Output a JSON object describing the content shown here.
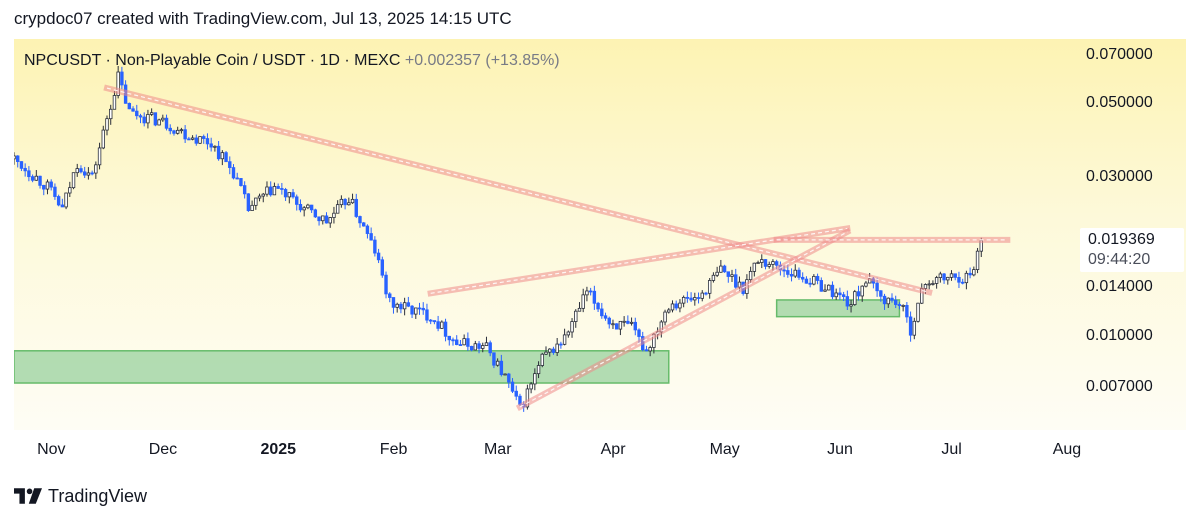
{
  "credit": "crypdoc07 created with TradingView.com, Jul 13, 2025 14:15 UTC",
  "legend": {
    "symbol": "NPCUSDT · Non-Playable Coin / USDT · 1D · MEXC",
    "change": "+0.002357 (+13.85%)"
  },
  "brand": {
    "name": "TradingView",
    "icon": "tradingview-logo-icon"
  },
  "colors": {
    "up": "#2a2e39",
    "down": "#2962ff",
    "trendline": "#ef8a8a",
    "zone_fill": "#a5d6a7",
    "zone_border": "#66bb6a"
  },
  "current": {
    "price": "0.019369",
    "countdown": "09:44:20"
  },
  "chart_data": {
    "type": "candlestick",
    "title": "",
    "y_scale": "log",
    "ylim": [
      0.0052,
      0.078
    ],
    "xlim": [
      "2024-10-26",
      "2025-08-08"
    ],
    "y_ticks": [
      "0.070000",
      "0.050000",
      "0.030000",
      "0.014000",
      "0.010000",
      "0.007000"
    ],
    "x_ticks": [
      {
        "label": "Nov",
        "date": "2024-11-01",
        "bold": false
      },
      {
        "label": "Dec",
        "date": "2024-12-01",
        "bold": false
      },
      {
        "label": "2025",
        "date": "2025-01-01",
        "bold": true
      },
      {
        "label": "Feb",
        "date": "2025-02-01",
        "bold": false
      },
      {
        "label": "Mar",
        "date": "2025-03-01",
        "bold": false
      },
      {
        "label": "Apr",
        "date": "2025-04-01",
        "bold": false
      },
      {
        "label": "May",
        "date": "2025-05-01",
        "bold": false
      },
      {
        "label": "Jun",
        "date": "2025-06-01",
        "bold": false
      },
      {
        "label": "Jul",
        "date": "2025-07-01",
        "bold": false
      },
      {
        "label": "Aug",
        "date": "2025-08-01",
        "bold": false
      }
    ],
    "price_path": [
      [
        "2024-10-26",
        0.034
      ],
      [
        "2024-11-04",
        0.028
      ],
      [
        "2024-11-08",
        0.024
      ],
      [
        "2024-11-12",
        0.033
      ],
      [
        "2024-11-16",
        0.03
      ],
      [
        "2024-11-20",
        0.045
      ],
      [
        "2024-11-23",
        0.06
      ],
      [
        "2024-11-26",
        0.047
      ],
      [
        "2024-12-05",
        0.044
      ],
      [
        "2024-12-12",
        0.04
      ],
      [
        "2024-12-18",
        0.038
      ],
      [
        "2024-12-24",
        0.031
      ],
      [
        "2024-12-28",
        0.024
      ],
      [
        "2025-01-04",
        0.028
      ],
      [
        "2025-01-12",
        0.024
      ],
      [
        "2025-01-18",
        0.022
      ],
      [
        "2025-01-24",
        0.026
      ],
      [
        "2025-01-31",
        0.018
      ],
      [
        "2025-02-04",
        0.0125
      ],
      [
        "2025-02-15",
        0.0115
      ],
      [
        "2025-02-22",
        0.0095
      ],
      [
        "2025-03-02",
        0.0092
      ],
      [
        "2025-03-07",
        0.0075
      ],
      [
        "2025-03-11",
        0.006
      ],
      [
        "2025-03-17",
        0.0085
      ],
      [
        "2025-03-23",
        0.0098
      ],
      [
        "2025-03-29",
        0.0135
      ],
      [
        "2025-04-04",
        0.011
      ],
      [
        "2025-04-10",
        0.0105
      ],
      [
        "2025-04-14",
        0.009
      ],
      [
        "2025-04-20",
        0.0125
      ],
      [
        "2025-04-28",
        0.013
      ],
      [
        "2025-05-04",
        0.0158
      ],
      [
        "2025-05-10",
        0.014
      ],
      [
        "2025-05-14",
        0.017
      ],
      [
        "2025-05-20",
        0.016
      ],
      [
        "2025-05-26",
        0.015
      ],
      [
        "2025-06-01",
        0.014
      ],
      [
        "2025-06-08",
        0.0125
      ],
      [
        "2025-06-12",
        0.0148
      ],
      [
        "2025-06-16",
        0.013
      ],
      [
        "2025-06-21",
        0.0125
      ],
      [
        "2025-06-24",
        0.0105
      ],
      [
        "2025-06-28",
        0.0145
      ],
      [
        "2025-07-05",
        0.015
      ],
      [
        "2025-07-10",
        0.015
      ],
      [
        "2025-07-13",
        0.0194
      ]
    ],
    "annotations": {
      "trendlines": [
        {
          "from": [
            "2024-11-20",
            0.0555
          ],
          "to": [
            "2025-06-29",
            0.0135
          ]
        },
        {
          "from": [
            "2025-02-15",
            0.0134
          ],
          "to": [
            "2025-06-07",
            0.021
          ]
        },
        {
          "from": [
            "2025-03-11",
            0.0061
          ],
          "to": [
            "2025-06-07",
            0.0205
          ]
        },
        {
          "from": [
            "2025-05-19",
            0.0194
          ],
          "to": [
            "2025-07-20",
            0.0194
          ]
        }
      ],
      "zones": [
        {
          "from": "2024-10-26",
          "to": "2025-04-20",
          "top": 0.009,
          "bottom": 0.0072
        },
        {
          "from": "2025-05-19",
          "to": "2025-06-21",
          "top": 0.0128,
          "bottom": 0.0114
        }
      ]
    }
  }
}
